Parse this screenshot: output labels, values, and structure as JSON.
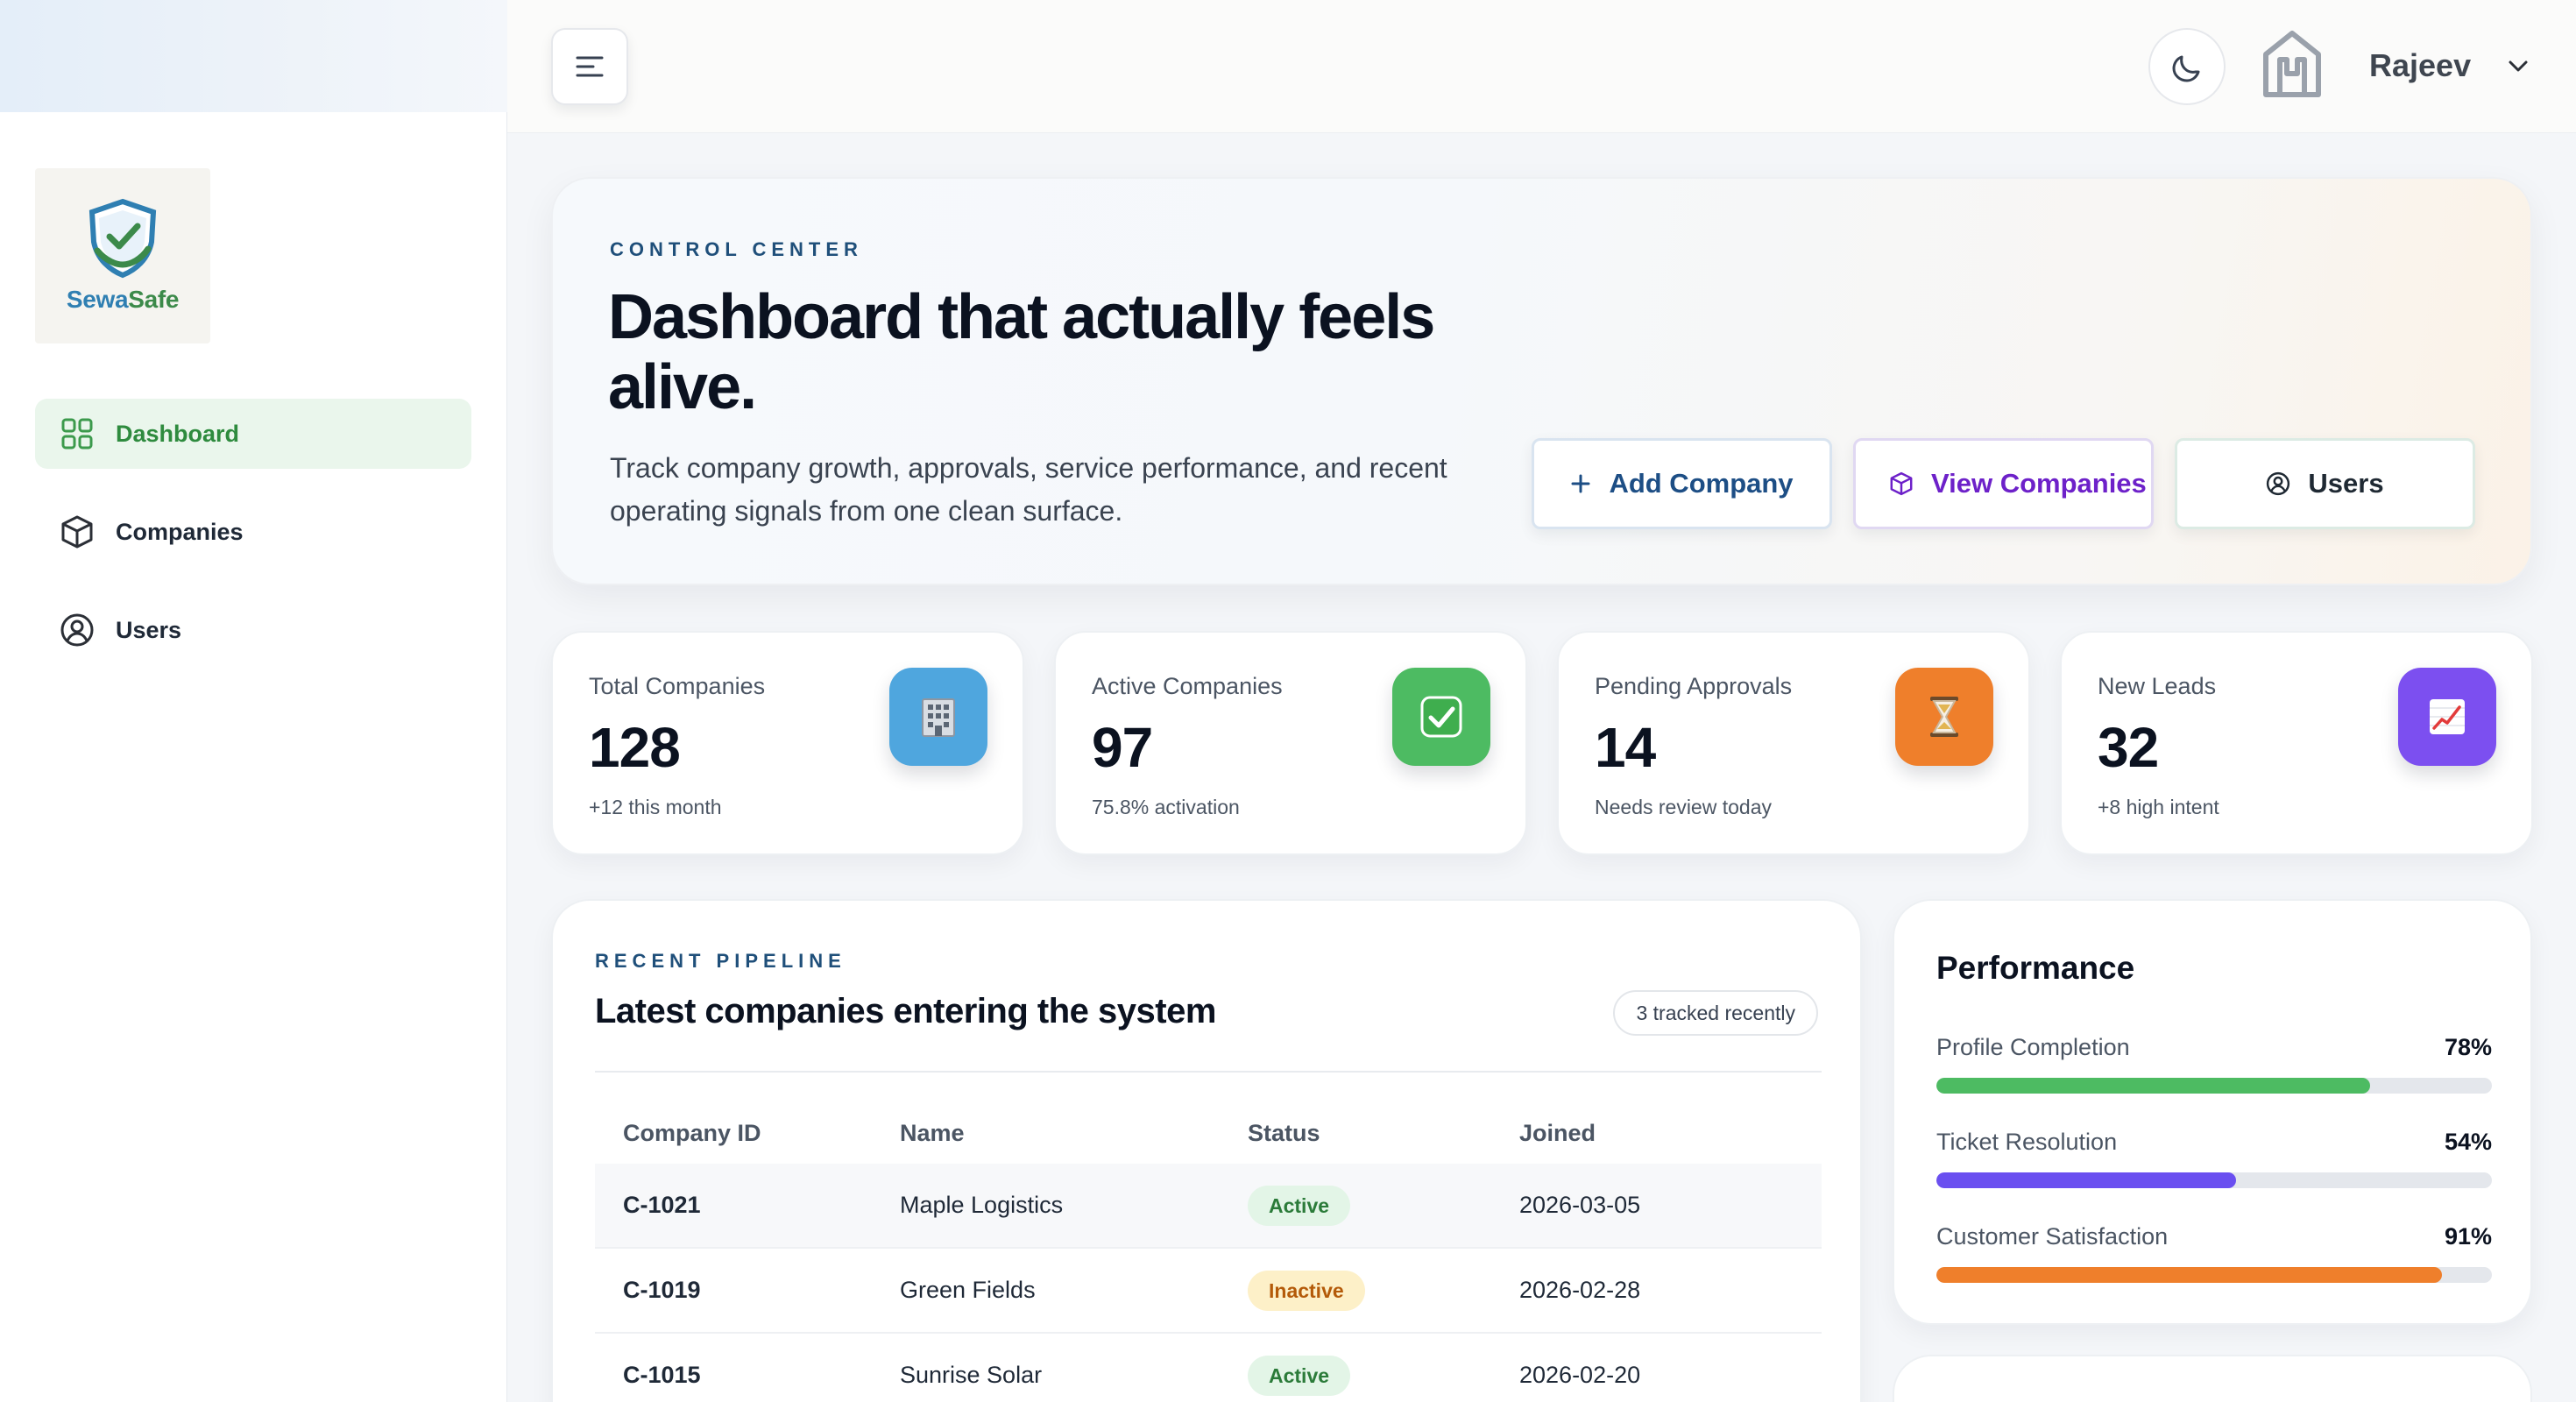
{
  "brand": {
    "part1": "Sewa",
    "part2": "Safe"
  },
  "sidebar": {
    "items": [
      {
        "label": "Dashboard"
      },
      {
        "label": "Companies"
      },
      {
        "label": "Users"
      }
    ]
  },
  "topbar": {
    "user_name": "Rajeev"
  },
  "hero": {
    "eyebrow": "CONTROL CENTER",
    "title": "Dashboard that actually feels alive.",
    "subtitle": "Track company growth, approvals, service performance, and recent operating signals from one clean surface.",
    "buttons": {
      "add": "Add Company",
      "view": "View Companies",
      "users": "Users"
    }
  },
  "stats": [
    {
      "label": "Total Companies",
      "value": "128",
      "note": "+12 this month",
      "icon": "building-icon",
      "emoji": "🏢",
      "color": "#4fa6de"
    },
    {
      "label": "Active Companies",
      "value": "97",
      "note": "75.8% activation",
      "icon": "check-icon",
      "emoji": "✅",
      "color": "#4dbb62"
    },
    {
      "label": "Pending Approvals",
      "value": "14",
      "note": "Needs review today",
      "icon": "hourglass-icon",
      "emoji": "⏳",
      "color": "#ef7f2b"
    },
    {
      "label": "New Leads",
      "value": "32",
      "note": "+8 high intent",
      "icon": "chart-up-icon",
      "emoji": "📈",
      "color": "#7c4ff0"
    }
  ],
  "pipeline": {
    "eyebrow": "RECENT PIPELINE",
    "title": "Latest companies entering the system",
    "chip": "3 tracked recently",
    "columns": [
      "Company ID",
      "Name",
      "Status",
      "Joined"
    ],
    "rows": [
      {
        "id": "C-1021",
        "name": "Maple Logistics",
        "status": "Active",
        "joined": "2026-03-05"
      },
      {
        "id": "C-1019",
        "name": "Green Fields",
        "status": "Inactive",
        "joined": "2026-02-28"
      },
      {
        "id": "C-1015",
        "name": "Sunrise Solar",
        "status": "Active",
        "joined": "2026-02-20"
      }
    ]
  },
  "performance": {
    "title": "Performance",
    "metrics": [
      {
        "label": "Profile Completion",
        "value": "78%",
        "fraction": 0.78,
        "color": "#4dbb62"
      },
      {
        "label": "Ticket Resolution",
        "value": "54%",
        "fraction": 0.54,
        "color": "#6a4ff0"
      },
      {
        "label": "Customer Satisfaction",
        "value": "91%",
        "fraction": 0.91,
        "color": "#ef7f2b"
      }
    ]
  }
}
